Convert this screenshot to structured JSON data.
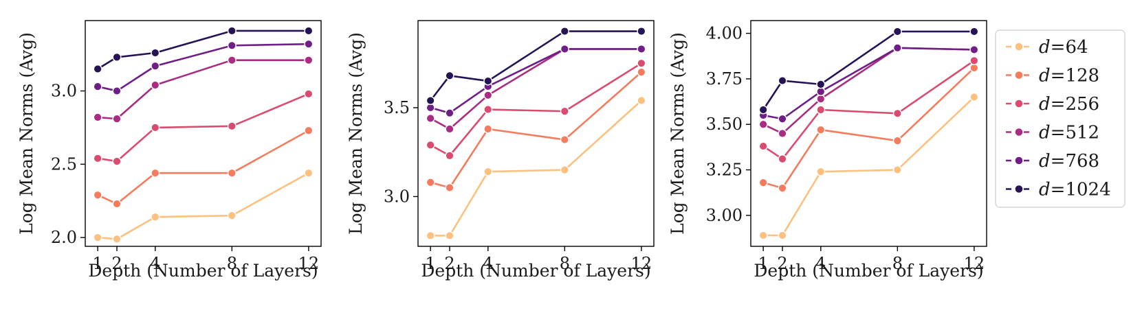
{
  "chart_data": [
    {
      "type": "line",
      "title": "",
      "xlabel": "Depth (Number of Layers)",
      "ylabel": "Log Mean Norms (Avg)",
      "x": [
        1,
        2,
        4,
        8,
        12
      ],
      "x_ticks": [
        1,
        2,
        4,
        8,
        12
      ],
      "xlim": [
        0.35,
        12.65
      ],
      "ylim": [
        1.94,
        3.48
      ],
      "y_ticks": [
        2.0,
        2.5,
        3.0
      ],
      "y_tick_labels": [
        "2.0",
        "2.5",
        "3.0"
      ],
      "grid": false,
      "series": [
        {
          "name": "d=64",
          "values": [
            2.0,
            1.99,
            2.14,
            2.15,
            2.44
          ]
        },
        {
          "name": "d=128",
          "values": [
            2.29,
            2.23,
            2.44,
            2.44,
            2.73
          ]
        },
        {
          "name": "d=256",
          "values": [
            2.54,
            2.52,
            2.75,
            2.76,
            2.98
          ]
        },
        {
          "name": "d=512",
          "values": [
            2.82,
            2.81,
            3.04,
            3.21,
            3.21
          ]
        },
        {
          "name": "d=768",
          "values": [
            3.03,
            3.0,
            3.17,
            3.31,
            3.32
          ]
        },
        {
          "name": "d=1024",
          "values": [
            3.15,
            3.23,
            3.26,
            3.41,
            3.41
          ]
        }
      ]
    },
    {
      "type": "line",
      "title": "",
      "xlabel": "Depth (Number of Layers)",
      "ylabel": "Log Mean Norms (Avg)",
      "x": [
        1,
        2,
        4,
        8,
        12
      ],
      "x_ticks": [
        1,
        2,
        4,
        8,
        12
      ],
      "xlim": [
        0.35,
        12.65
      ],
      "ylim": [
        2.72,
        3.99
      ],
      "y_ticks": [
        3.0,
        3.5
      ],
      "y_tick_labels": [
        "3.0",
        "3.5"
      ],
      "grid": false,
      "series": [
        {
          "name": "d=64",
          "values": [
            2.78,
            2.78,
            3.14,
            3.15,
            3.54
          ]
        },
        {
          "name": "d=128",
          "values": [
            3.08,
            3.05,
            3.38,
            3.32,
            3.7
          ]
        },
        {
          "name": "d=256",
          "values": [
            3.29,
            3.23,
            3.49,
            3.48,
            3.75
          ]
        },
        {
          "name": "d=512",
          "values": [
            3.44,
            3.38,
            3.57,
            3.83,
            3.83
          ]
        },
        {
          "name": "d=768",
          "values": [
            3.5,
            3.47,
            3.62,
            3.83,
            3.83
          ]
        },
        {
          "name": "d=1024",
          "values": [
            3.54,
            3.68,
            3.65,
            3.93,
            3.93
          ]
        }
      ]
    },
    {
      "type": "line",
      "title": "",
      "xlabel": "Depth (Number of Layers)",
      "ylabel": "Log Mean Norms (Avg)",
      "x": [
        1,
        2,
        4,
        8,
        12
      ],
      "x_ticks": [
        1,
        2,
        4,
        8,
        12
      ],
      "xlim": [
        0.35,
        12.65
      ],
      "ylim": [
        2.83,
        4.07
      ],
      "y_ticks": [
        3.0,
        3.25,
        3.5,
        3.75,
        4.0
      ],
      "y_tick_labels": [
        "3.00",
        "3.25",
        "3.50",
        "3.75",
        "4.00"
      ],
      "grid": false,
      "series": [
        {
          "name": "d=64",
          "values": [
            2.89,
            2.89,
            3.24,
            3.25,
            3.65
          ]
        },
        {
          "name": "d=128",
          "values": [
            3.18,
            3.15,
            3.47,
            3.41,
            3.81
          ]
        },
        {
          "name": "d=256",
          "values": [
            3.38,
            3.31,
            3.58,
            3.56,
            3.85
          ]
        },
        {
          "name": "d=512",
          "values": [
            3.5,
            3.45,
            3.64,
            3.92,
            3.91
          ]
        },
        {
          "name": "d=768",
          "values": [
            3.55,
            3.53,
            3.68,
            3.92,
            3.91
          ]
        },
        {
          "name": "d=1024",
          "values": [
            3.58,
            3.74,
            3.72,
            4.01,
            4.01
          ]
        }
      ]
    }
  ],
  "legend": {
    "placement": "outside-right",
    "items": [
      {
        "prefix": "d",
        "suffix": "=64",
        "color": "#fdc07f"
      },
      {
        "prefix": "d",
        "suffix": "=128",
        "color": "#f47b5b"
      },
      {
        "prefix": "d",
        "suffix": "=256",
        "color": "#da4b6f"
      },
      {
        "prefix": "d",
        "suffix": "=512",
        "color": "#a92b82"
      },
      {
        "prefix": "d",
        "suffix": "=768",
        "color": "#6f1d87"
      },
      {
        "prefix": "d",
        "suffix": "=1024",
        "color": "#251356"
      }
    ]
  },
  "series_colors": [
    "#fdc07f",
    "#f47b5b",
    "#da4b6f",
    "#a92b82",
    "#6f1d87",
    "#251356"
  ]
}
